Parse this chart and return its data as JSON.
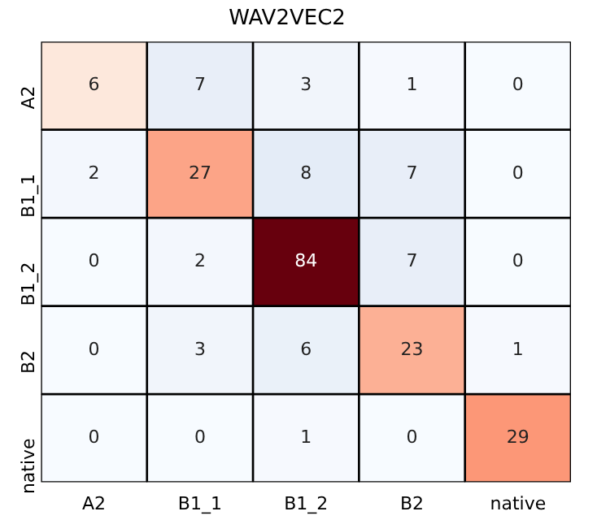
{
  "chart_data": {
    "type": "heatmap",
    "title": "WAV2VEC2",
    "categories": [
      "A2",
      "B1_1",
      "B1_2",
      "B2",
      "native"
    ],
    "y_categories": [
      "A2",
      "B1_1",
      "B1_2",
      "B2",
      "native"
    ],
    "cells": [
      [
        6,
        7,
        3,
        1,
        0
      ],
      [
        2,
        27,
        8,
        7,
        0
      ],
      [
        0,
        2,
        84,
        7,
        0
      ],
      [
        0,
        3,
        6,
        23,
        1
      ],
      [
        0,
        0,
        1,
        0,
        29
      ]
    ],
    "colors": [
      [
        "#fde8dc",
        "#e8eef8",
        "#f1f5fb",
        "#f6f9fe",
        "#f7fbff"
      ],
      [
        "#f3f7fd",
        "#fca487",
        "#e4ecf7",
        "#e8eef8",
        "#f7fbff"
      ],
      [
        "#f7fbff",
        "#f3f7fd",
        "#67000d",
        "#e8eef8",
        "#f7fbff"
      ],
      [
        "#f7fbff",
        "#f1f5fb",
        "#eaf1f9",
        "#fcb095",
        "#f6f9fe"
      ],
      [
        "#f7fbff",
        "#f7fbff",
        "#f6f9fe",
        "#f7fbff",
        "#fc9777"
      ]
    ],
    "data_labels": true,
    "grid": false,
    "legend": false
  }
}
